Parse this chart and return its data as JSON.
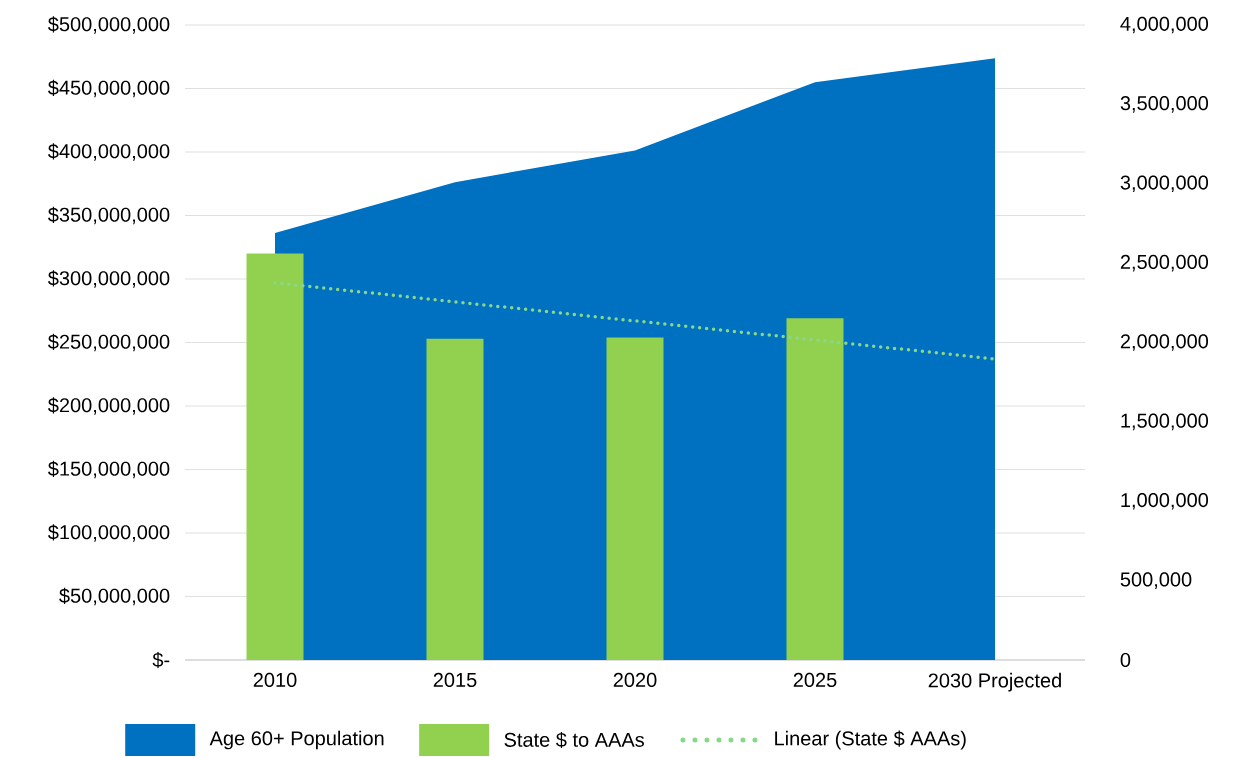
{
  "chart_data": {
    "type": "bar",
    "categories": [
      "2010",
      "2015",
      "2020",
      "2025",
      "2030 Projected"
    ],
    "series": [
      {
        "name": "Age 60+ Population",
        "type": "area",
        "axis": "y2",
        "color": "#0070c0",
        "values": [
          2690000,
          3010000,
          3210000,
          3640000,
          3790000
        ]
      },
      {
        "name": "State $ to AAAs",
        "color": "#92d050",
        "values": [
          320000000,
          253000000,
          254000000,
          269000000,
          null
        ]
      },
      {
        "name": "Linear (State $ AAAs)",
        "type": "line",
        "line_style": "dotted",
        "color": "#88d88a",
        "values": [
          297000000,
          null,
          null,
          null,
          237000000
        ]
      }
    ],
    "ylim": [
      0,
      500000000
    ],
    "yticks": [
      {
        "value": 0,
        "label": "$-"
      },
      {
        "value": 50000000,
        "label": "$50,000,000"
      },
      {
        "value": 100000000,
        "label": "$100,000,000"
      },
      {
        "value": 150000000,
        "label": "$150,000,000"
      },
      {
        "value": 200000000,
        "label": "$200,000,000"
      },
      {
        "value": 250000000,
        "label": "$250,000,000"
      },
      {
        "value": 300000000,
        "label": "$300,000,000"
      },
      {
        "value": 350000000,
        "label": "$350,000,000"
      },
      {
        "value": 400000000,
        "label": "$400,000,000"
      },
      {
        "value": 450000000,
        "label": "$450,000,000"
      },
      {
        "value": 500000000,
        "label": "$500,000,000"
      }
    ],
    "y2lim": [
      0,
      4000000
    ],
    "y2ticks": [
      0,
      {
        "value": 500000,
        "label": "500,000"
      },
      {
        "value": 1000000,
        "label": "1,000,000"
      },
      {
        "value": 1500000,
        "label": "1,500,000"
      },
      {
        "value": 2000000,
        "label": "2,000,000"
      },
      {
        "value": 2500000,
        "label": "2,500,000"
      },
      {
        "value": 3000000,
        "label": "3,000,000"
      },
      {
        "value": 3500000,
        "label": "3,500,000"
      },
      {
        "value": 4000000,
        "label": "4,000,000"
      }
    ],
    "grid": "y",
    "legend": "bottom"
  }
}
